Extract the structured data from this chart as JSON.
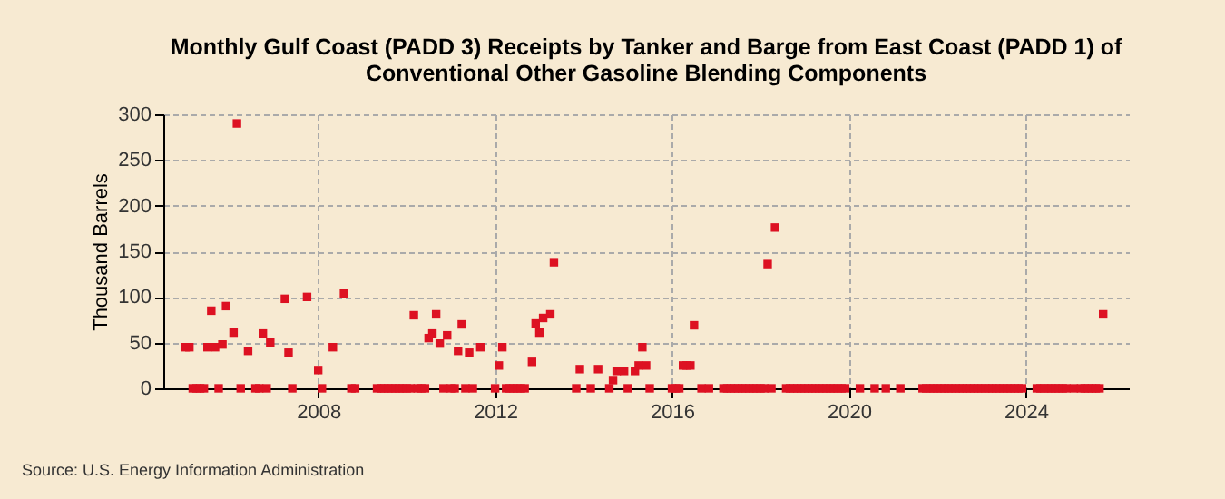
{
  "chart_data": {
    "type": "scatter",
    "title": "Monthly Gulf Coast (PADD 3) Receipts by Tanker and Barge from East Coast (PADD 1) of Conventional Other Gasoline Blending Components",
    "ylabel": "Thousand Barrels",
    "annotations": [
      "Source: U.S. Energy Information Administration"
    ],
    "x": [
      "2005-01",
      "2005-02",
      "2005-03",
      "2005-04",
      "2005-05",
      "2005-06",
      "2005-07",
      "2005-08",
      "2005-09",
      "2005-10",
      "2005-11",
      "2005-12",
      "2006-02",
      "2006-03",
      "2006-04",
      "2006-06",
      "2006-08",
      "2006-09",
      "2006-10",
      "2006-11",
      "2006-12",
      "2007-04",
      "2007-05",
      "2007-06",
      "2007-10",
      "2008-01",
      "2008-02",
      "2008-05",
      "2008-08",
      "2008-10",
      "2008-11",
      "2009-05",
      "2009-06",
      "2009-07",
      "2009-08",
      "2009-09",
      "2009-10",
      "2009-11",
      "2009-12",
      "2010-01",
      "2010-02",
      "2010-03",
      "2010-04",
      "2010-05",
      "2010-06",
      "2010-07",
      "2010-08",
      "2010-09",
      "2010-10",
      "2010-11",
      "2010-12",
      "2011-01",
      "2011-02",
      "2011-03",
      "2011-04",
      "2011-05",
      "2011-06",
      "2011-07",
      "2011-09",
      "2012-01",
      "2012-02",
      "2012-03",
      "2012-04",
      "2012-05",
      "2012-06",
      "2012-07",
      "2012-08",
      "2012-09",
      "2012-11",
      "2012-12",
      "2013-01",
      "2013-02",
      "2013-04",
      "2013-05",
      "2013-11",
      "2013-12",
      "2014-03",
      "2014-05",
      "2014-08",
      "2014-09",
      "2014-10",
      "2014-12",
      "2015-01",
      "2015-03",
      "2015-04",
      "2015-05",
      "2015-06",
      "2015-07",
      "2016-01",
      "2016-02",
      "2016-03",
      "2016-04",
      "2016-05",
      "2016-06",
      "2016-07",
      "2016-09",
      "2016-11",
      "2017-03",
      "2017-04",
      "2017-05",
      "2017-06",
      "2017-07",
      "2017-08",
      "2017-09",
      "2017-10",
      "2017-11",
      "2017-12",
      "2018-01",
      "2018-02",
      "2018-03",
      "2018-04",
      "2018-05",
      "2018-08",
      "2018-09",
      "2018-10",
      "2018-11",
      "2018-12",
      "2019-01",
      "2019-02",
      "2019-03",
      "2019-04",
      "2019-05",
      "2019-06",
      "2019-07",
      "2019-08",
      "2019-09",
      "2019-10",
      "2019-11",
      "2019-12",
      "2020-04",
      "2020-08",
      "2020-11",
      "2021-03",
      "2021-09",
      "2021-10",
      "2021-11",
      "2021-12",
      "2022-01",
      "2022-02",
      "2022-03",
      "2022-04",
      "2022-05",
      "2022-06",
      "2022-07",
      "2022-08",
      "2022-09",
      "2022-10",
      "2022-11",
      "2022-12",
      "2023-01",
      "2023-02",
      "2023-03",
      "2023-04",
      "2023-05",
      "2023-06",
      "2023-07",
      "2023-08",
      "2023-09",
      "2023-10",
      "2023-11",
      "2023-12",
      "2024-04",
      "2024-05",
      "2024-06",
      "2024-07",
      "2024-08",
      "2024-09",
      "2024-10",
      "2024-11",
      "2024-12",
      "2025-02",
      "2025-04",
      "2025-05",
      "2025-06",
      "2025-07",
      "2025-08",
      "2025-09",
      "2025-10"
    ],
    "series": [
      {
        "color": "#dd1122",
        "values": [
          45,
          45,
          0,
          0,
          0,
          0,
          45,
          85,
          45,
          0,
          48,
          90,
          61,
          290,
          0,
          41,
          0,
          0,
          60,
          0,
          50,
          98,
          39,
          0,
          100,
          20,
          0,
          45,
          104,
          0,
          0,
          0,
          0,
          0,
          0,
          0,
          0,
          0,
          0,
          0,
          0,
          80,
          0,
          0,
          0,
          55,
          60,
          81,
          49,
          0,
          58,
          0,
          0,
          41,
          70,
          0,
          39,
          0,
          45,
          0,
          25,
          45,
          0,
          0,
          0,
          0,
          0,
          0,
          29,
          71,
          61,
          77,
          81,
          138,
          0,
          21,
          0,
          21,
          0,
          9,
          19,
          19,
          0,
          19,
          25,
          45,
          25,
          0,
          0,
          0,
          0,
          25,
          25,
          25,
          69,
          0,
          0,
          0,
          0,
          0,
          0,
          0,
          0,
          0,
          0,
          0,
          0,
          0,
          0,
          136,
          0,
          176,
          0,
          0,
          0,
          0,
          0,
          0,
          0,
          0,
          0,
          0,
          0,
          0,
          0,
          0,
          0,
          0,
          0,
          0,
          0,
          0,
          0,
          0,
          0,
          0,
          0,
          0,
          0,
          0,
          0,
          0,
          0,
          0,
          0,
          0,
          0,
          0,
          0,
          0,
          0,
          0,
          0,
          0,
          0,
          0,
          0,
          0,
          0,
          0,
          0,
          0,
          0,
          0,
          0,
          0,
          0,
          0,
          0,
          0,
          0,
          0,
          0,
          0,
          0,
          0,
          0,
          81
        ]
      }
    ],
    "xlim": [
      "2004-07",
      "2026-05"
    ],
    "xticks": [
      "2008",
      "2012",
      "2016",
      "2020",
      "2024"
    ],
    "ylim": [
      0,
      300
    ],
    "yticks": [
      0,
      50,
      100,
      150,
      200,
      250,
      300
    ],
    "grid": true,
    "marker": "square"
  }
}
